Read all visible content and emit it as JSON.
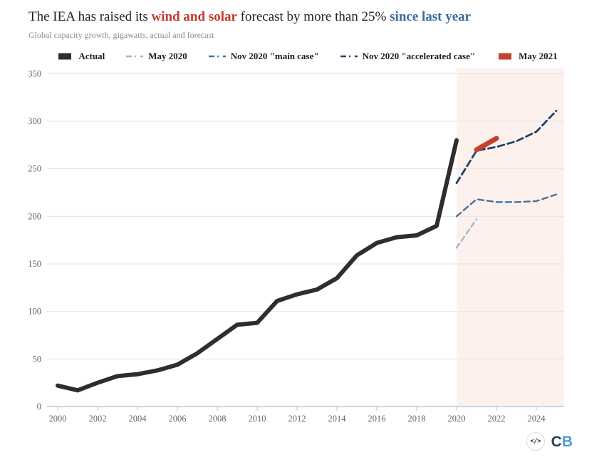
{
  "header": {
    "title_parts": [
      {
        "text": "The IEA has raised its ",
        "style": "plain"
      },
      {
        "text": "wind and solar",
        "style": "red"
      },
      {
        "text": " forecast by more than 25% ",
        "style": "plain"
      },
      {
        "text": "since last year",
        "style": "blue"
      }
    ],
    "accent_red": "#c0392b",
    "accent_blue": "#3a6b9b",
    "subtitle": "Global capacity growth, gigawatts, actual and forecast"
  },
  "legend": {
    "items": [
      {
        "label": "Actual",
        "marker": "swatch",
        "color": "#2e2e2e"
      },
      {
        "label": "May 2020",
        "marker": "dash",
        "color": "#9db7ce"
      },
      {
        "label": "Nov 2020 \"main case\"",
        "marker": "dash",
        "color": "#47729e"
      },
      {
        "label": "Nov 2020 \"accelerated case\"",
        "marker": "dash",
        "color": "#1d4266"
      },
      {
        "label": "May 2021",
        "marker": "swatch",
        "color": "#c6402d"
      }
    ]
  },
  "chart_data": {
    "type": "line",
    "title": "The IEA has raised its wind and solar forecast by more than 25% since last year",
    "subtitle": "Global capacity growth, gigawatts, actual and forecast",
    "xlabel": "",
    "ylabel": "",
    "xlim": [
      2000,
      2025.4
    ],
    "ylim": [
      0,
      355
    ],
    "x_ticks": [
      2000,
      2002,
      2004,
      2006,
      2008,
      2010,
      2012,
      2014,
      2016,
      2018,
      2020,
      2022,
      2024
    ],
    "y_ticks": [
      0,
      50,
      100,
      150,
      200,
      250,
      300,
      350
    ],
    "grid": true,
    "legend_position": "top",
    "forecast_region": {
      "from": 2020,
      "to": 2025.4,
      "color": "#fdf1ee"
    },
    "axis_color": "#b9c9dc",
    "gridline_color": "#e4e4e4",
    "tick_label_color": "#666666",
    "series": [
      {
        "name": "Actual",
        "color": "#2e2e2e",
        "dash": null,
        "width": 6,
        "x": [
          2000,
          2001,
          2002,
          2003,
          2004,
          2005,
          2006,
          2007,
          2008,
          2009,
          2010,
          2011,
          2012,
          2013,
          2014,
          2015,
          2016,
          2017,
          2018,
          2019,
          2020
        ],
        "values": [
          22,
          17,
          25,
          32,
          34,
          38,
          44,
          56,
          71,
          86,
          88,
          111,
          118,
          123,
          135,
          159,
          172,
          178,
          180,
          190,
          280
        ]
      },
      {
        "name": "May 2020",
        "color": "#9db7ce",
        "dash": "7 5",
        "width": 2.4,
        "x": [
          2020,
          2021
        ],
        "values": [
          167,
          197
        ]
      },
      {
        "name": "Nov 2020 \"main case\"",
        "color": "#47729e",
        "dash": "8 5",
        "width": 2.4,
        "x": [
          2020,
          2021,
          2022,
          2023,
          2024,
          2025
        ],
        "values": [
          200,
          218,
          215,
          215,
          216,
          223
        ]
      },
      {
        "name": "Nov 2020 \"accelerated case\"",
        "color": "#1d4266",
        "dash": "9 5",
        "width": 2.8,
        "x": [
          2020,
          2021,
          2022,
          2023,
          2024,
          2025
        ],
        "values": [
          235,
          269,
          273,
          279,
          289,
          311
        ]
      },
      {
        "name": "May 2021",
        "color": "#c6402d",
        "dash": null,
        "width": 7,
        "x": [
          2021,
          2022
        ],
        "values": [
          270,
          282
        ]
      }
    ]
  },
  "footer": {
    "embed_icon": "</>",
    "logo_c": "C",
    "logo_b": "B",
    "logo_c_color": "#2e3e4e",
    "logo_b_color": "#4f9cd6"
  }
}
